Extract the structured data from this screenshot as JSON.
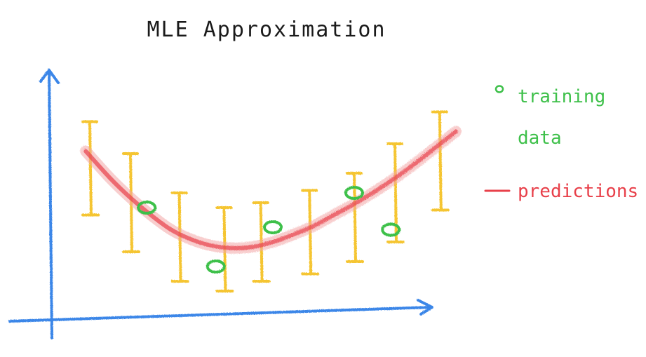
{
  "chart_data": {
    "type": "line",
    "title": "MLE Approximation",
    "xlabel": "",
    "ylabel": "",
    "xlim": [
      0,
      10
    ],
    "ylim": [
      0,
      10
    ],
    "grid": false,
    "legend_placement": "right",
    "legend": [
      {
        "marker": "o",
        "lines": [
          "training",
          "data"
        ],
        "color": "#3ec04a"
      },
      {
        "marker": "—",
        "lines": [
          "predictions"
        ],
        "color": "#e8404a"
      }
    ],
    "series": [
      {
        "kind": "training",
        "color": "#3ec04a",
        "points": [
          {
            "x": 2.4,
            "y": 4.4
          },
          {
            "x": 4.1,
            "y": 2.0
          },
          {
            "x": 5.5,
            "y": 3.6
          },
          {
            "x": 7.5,
            "y": 5.0
          },
          {
            "x": 8.4,
            "y": 3.5
          }
        ]
      },
      {
        "kind": "predictions",
        "color": "#e8404a",
        "errorbar_color": "#f5c531",
        "x": [
          1.0,
          2.0,
          3.2,
          4.3,
          5.2,
          6.4,
          7.5,
          8.5,
          9.6
        ],
        "y": [
          6.0,
          4.6,
          3.2,
          2.7,
          3.0,
          3.4,
          4.0,
          5.0,
          6.3
        ],
        "err": [
          1.9,
          2.0,
          1.8,
          1.7,
          1.6,
          1.7,
          1.8,
          2.0,
          2.0
        ],
        "curve": [
          [
            0.9,
            6.7
          ],
          [
            1.5,
            5.6
          ],
          [
            2.0,
            4.8
          ],
          [
            2.5,
            4.1
          ],
          [
            3.0,
            3.5
          ],
          [
            3.5,
            3.1
          ],
          [
            4.0,
            2.85
          ],
          [
            4.5,
            2.75
          ],
          [
            5.0,
            2.8
          ],
          [
            5.5,
            3.0
          ],
          [
            6.0,
            3.3
          ],
          [
            6.5,
            3.65
          ],
          [
            7.0,
            4.1
          ],
          [
            7.5,
            4.55
          ],
          [
            8.0,
            5.05
          ],
          [
            8.5,
            5.6
          ],
          [
            9.0,
            6.2
          ],
          [
            9.5,
            6.85
          ],
          [
            10.0,
            7.5
          ]
        ]
      }
    ]
  }
}
